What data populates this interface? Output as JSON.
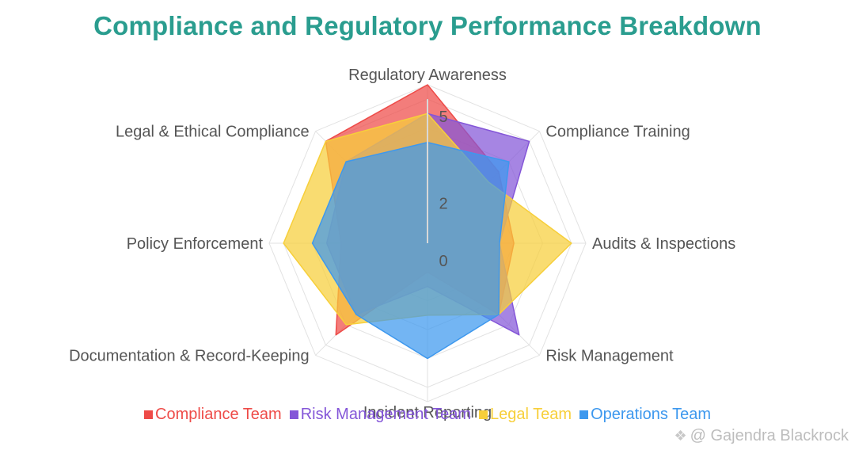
{
  "title": "Compliance and Regulatory Performance Breakdown",
  "chart_data": {
    "type": "radar",
    "axes": [
      "Regulatory Awareness",
      "Compliance Training",
      "Audits & Inspections",
      "Risk Management",
      "Incident Reporting",
      "Documentation & Record-Keeping",
      "Policy Enforcement",
      "Legal & Ethical Compliance"
    ],
    "r_ticks": [
      "0",
      "2",
      "5"
    ],
    "r_tick_values": [
      0,
      2,
      5
    ],
    "r_max": 5.5,
    "grid": true,
    "legend_position": "bottom",
    "series": [
      {
        "name": "Compliance Team",
        "color": "#ee4b48",
        "values": [
          5.5,
          3.5,
          3.0,
          3.5,
          1.0,
          4.5,
          3.0,
          5.0
        ]
      },
      {
        "name": "Risk Management Team",
        "color": "#8456d8",
        "values": [
          4.5,
          5.0,
          2.5,
          4.5,
          1.5,
          3.5,
          3.5,
          4.0
        ]
      },
      {
        "name": "Legal Team",
        "color": "#f7cf3a",
        "values": [
          4.5,
          3.0,
          5.0,
          3.5,
          2.5,
          4.0,
          5.0,
          5.0
        ]
      },
      {
        "name": "Operations Team",
        "color": "#3d98ee",
        "values": [
          3.5,
          4.0,
          2.5,
          3.5,
          4.0,
          3.5,
          4.0,
          4.0
        ]
      }
    ]
  },
  "watermark": "@ Gajendra Blackrock"
}
